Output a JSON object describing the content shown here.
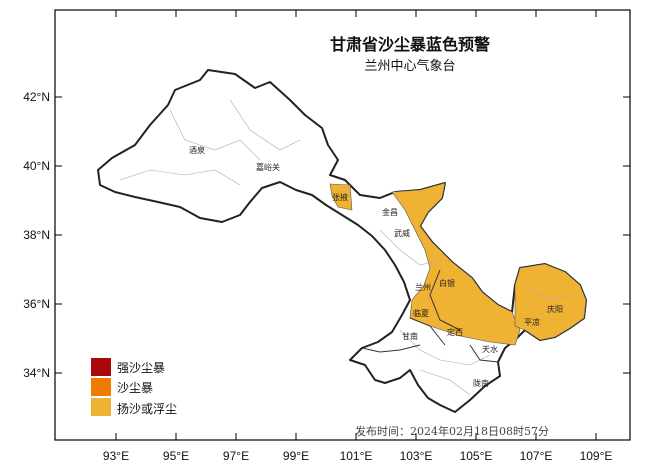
{
  "title": "甘肃省沙尘暴蓝色预警",
  "subtitle": "兰州中心气象台",
  "issue_time": "发布时间：2024年02月18日08时57分",
  "lat_labels": [
    "42°N",
    "40°N",
    "38°N",
    "36°N",
    "34°N"
  ],
  "lon_labels": [
    "93°E",
    "95°E",
    "97°E",
    "99°E",
    "101°E",
    "103°E",
    "105°E",
    "107°E",
    "109°E"
  ],
  "cities": [
    {
      "name": "酒泉"
    },
    {
      "name": "嘉峪关"
    },
    {
      "name": "张掖"
    },
    {
      "name": "金昌"
    },
    {
      "name": "武威"
    },
    {
      "name": "白银"
    },
    {
      "name": "兰州"
    },
    {
      "name": "临夏"
    },
    {
      "name": "定西"
    },
    {
      "name": "甘南"
    },
    {
      "name": "天水"
    },
    {
      "name": "平凉"
    },
    {
      "name": "庆阳"
    },
    {
      "name": "陇南"
    }
  ],
  "legend": [
    {
      "label": "强沙尘暴",
      "color": "#a80808"
    },
    {
      "label": "沙尘暴",
      "color": "#f07a06"
    },
    {
      "label": "扬沙或浮尘",
      "color": "#efb233"
    }
  ],
  "colors": {
    "warning_area": "#efb233",
    "outline": "#222222",
    "frame": "#000000"
  }
}
